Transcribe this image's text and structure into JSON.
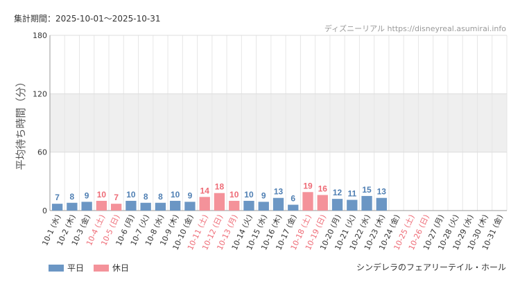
{
  "header": {
    "period": "集計期間：2025-10-01～2025-10-31",
    "source": "ディズニーリアル https://disneyreal.asumirai.info"
  },
  "legend": {
    "weekday_label": "平日",
    "holiday_label": "休日"
  },
  "facility": "シンデレラのフェアリーテイル・ホール",
  "colors": {
    "weekday": "#6b96c4",
    "holiday": "#f4929a",
    "weekday_text": "#4f7fb3",
    "holiday_text": "#ee6b76",
    "band": "#efefef"
  },
  "chart_data": {
    "type": "bar",
    "ylabel": "平均待ち時間（分）",
    "ylim": [
      0,
      180
    ],
    "yticks": [
      0,
      60,
      120,
      180
    ],
    "shaded_band": [
      60,
      120
    ],
    "categories": [
      "10-1 (水)",
      "10-2 (木)",
      "10-3 (金)",
      "10-4 (土)",
      "10-5 (日)",
      "10-6 (月)",
      "10-7 (火)",
      "10-8 (水)",
      "10-9 (木)",
      "10-10 (金)",
      "10-11 (土)",
      "10-12 (日)",
      "10-13 (月)",
      "10-14 (火)",
      "10-15 (水)",
      "10-16 (木)",
      "10-17 (金)",
      "10-18 (土)",
      "10-19 (日)",
      "10-20 (月)",
      "10-21 (火)",
      "10-22 (水)",
      "10-23 (木)",
      "10-24 (金)",
      "10-25 (土)",
      "10-26 (日)",
      "10-27 (月)",
      "10-28 (火)",
      "10-29 (水)",
      "10-30 (木)",
      "10-31 (金)"
    ],
    "values": [
      7,
      8,
      9,
      10,
      7,
      10,
      8,
      8,
      10,
      9,
      14,
      18,
      10,
      10,
      9,
      13,
      6,
      19,
      16,
      12,
      11,
      15,
      13,
      null,
      null,
      null,
      null,
      null,
      null,
      null,
      null
    ],
    "holiday": [
      false,
      false,
      false,
      true,
      true,
      false,
      false,
      false,
      false,
      false,
      true,
      true,
      true,
      false,
      false,
      false,
      false,
      true,
      true,
      false,
      false,
      false,
      false,
      false,
      true,
      true,
      false,
      false,
      false,
      false,
      false
    ],
    "series": [
      {
        "name": "平日"
      },
      {
        "name": "休日"
      }
    ]
  }
}
